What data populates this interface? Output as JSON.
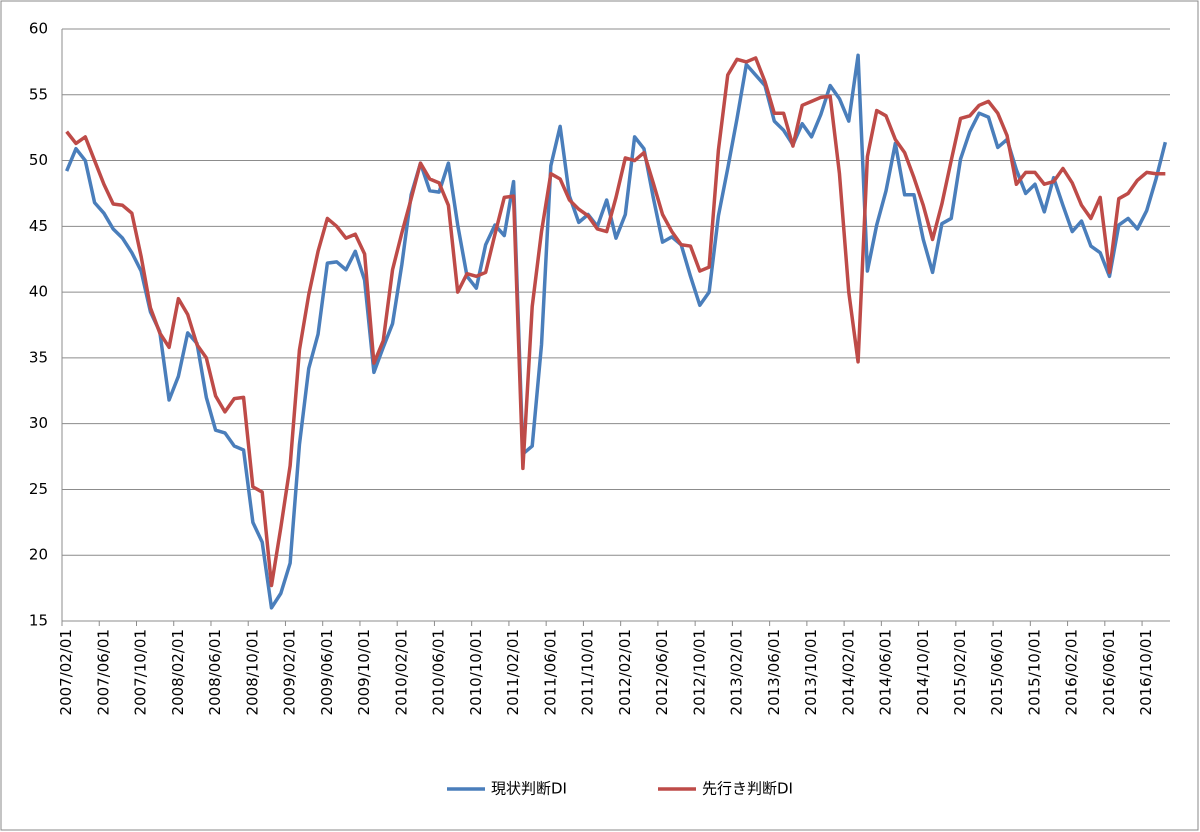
{
  "chart_data": {
    "type": "line",
    "categories": [
      "2007/02/01",
      null,
      null,
      null,
      "2007/06/01",
      null,
      null,
      null,
      "2007/10/01",
      null,
      null,
      null,
      "2008/02/01",
      null,
      null,
      null,
      "2008/06/01",
      null,
      null,
      null,
      "2008/10/01",
      null,
      null,
      null,
      "2009/02/01",
      null,
      null,
      null,
      "2009/06/01",
      null,
      null,
      null,
      "2009/10/01",
      null,
      null,
      null,
      "2010/02/01",
      null,
      null,
      null,
      "2010/06/01",
      null,
      null,
      null,
      "2010/10/01",
      null,
      null,
      null,
      "2011/02/01",
      null,
      null,
      null,
      "2011/06/01",
      null,
      null,
      null,
      "2011/10/01",
      null,
      null,
      null,
      "2012/02/01",
      null,
      null,
      null,
      "2012/06/01",
      null,
      null,
      null,
      "2012/10/01",
      null,
      null,
      null,
      "2013/02/01",
      null,
      null,
      null,
      "2013/06/01",
      null,
      null,
      null,
      "2013/10/01",
      null,
      null,
      null,
      "2014/02/01",
      null,
      null,
      null,
      "2014/06/01",
      null,
      null,
      null,
      "2014/10/01",
      null,
      null,
      null,
      "2015/02/01",
      null,
      null,
      null,
      "2015/06/01",
      null,
      null,
      null,
      "2015/10/01",
      null,
      null,
      null,
      "2016/02/01",
      null,
      null,
      null,
      "2016/06/01",
      null,
      null,
      null,
      "2016/10/01",
      null,
      null
    ],
    "series": [
      {
        "name": "現状判断DI",
        "color": "#4a7ebb",
        "values": [
          49.2,
          50.9,
          50.0,
          46.8,
          46.0,
          44.8,
          44.1,
          43.0,
          41.6,
          38.5,
          37.0,
          31.8,
          33.6,
          36.9,
          36.1,
          32.0,
          29.5,
          29.3,
          28.3,
          28.0,
          22.5,
          21.0,
          16.0,
          17.1,
          19.4,
          28.4,
          34.2,
          36.8,
          42.2,
          42.3,
          41.7,
          43.1,
          40.9,
          33.9,
          35.8,
          37.6,
          42.1,
          47.4,
          49.8,
          47.7,
          47.6,
          49.8,
          45.1,
          41.2,
          40.3,
          43.6,
          45.1,
          44.3,
          48.4,
          27.7,
          28.3,
          36.0,
          49.6,
          52.6,
          47.3,
          45.3,
          45.9,
          45.0,
          47.0,
          44.1,
          45.9,
          51.8,
          50.9,
          47.2,
          43.8,
          44.2,
          43.6,
          41.2,
          39.0,
          40.0,
          45.8,
          49.4,
          53.2,
          57.3,
          56.5,
          55.7,
          53.0,
          52.3,
          51.2,
          52.8,
          51.8,
          53.5,
          55.7,
          54.7,
          53.0,
          58.0,
          41.6,
          45.1,
          47.7,
          51.3,
          47.4,
          47.4,
          44.0,
          41.5,
          45.2,
          45.6,
          50.1,
          52.2,
          53.6,
          53.3,
          51.0,
          51.6,
          49.3,
          47.5,
          48.2,
          46.1,
          48.7,
          46.6,
          44.6,
          45.4,
          43.5,
          43.0,
          41.2,
          45.1,
          45.6,
          44.8,
          46.2,
          48.6,
          51.4
        ]
      },
      {
        "name": "先行き判断DI",
        "color": "#be4b48",
        "values": [
          52.2,
          51.3,
          51.8,
          50.0,
          48.2,
          46.7,
          46.6,
          46.0,
          42.7,
          38.8,
          36.9,
          35.8,
          39.5,
          38.3,
          36.0,
          35.0,
          32.1,
          30.9,
          31.9,
          32.0,
          25.2,
          24.8,
          17.7,
          22.1,
          26.8,
          35.6,
          39.8,
          43.1,
          45.6,
          45.0,
          44.1,
          44.4,
          42.9,
          34.6,
          36.3,
          41.7,
          44.5,
          47.1,
          49.8,
          48.6,
          48.3,
          46.6,
          40.0,
          41.4,
          41.2,
          41.5,
          44.4,
          47.2,
          47.3,
          26.6,
          38.9,
          44.6,
          49.0,
          48.6,
          47.0,
          46.3,
          45.8,
          44.8,
          44.6,
          47.2,
          50.2,
          50.0,
          50.6,
          48.3,
          45.9,
          44.6,
          43.6,
          43.5,
          41.6,
          41.9,
          50.8,
          56.5,
          57.7,
          57.5,
          57.8,
          56.0,
          53.6,
          53.6,
          51.1,
          54.2,
          54.5,
          54.8,
          54.9,
          49.0,
          40.0,
          34.7,
          50.3,
          53.8,
          53.4,
          51.6,
          50.6,
          48.7,
          46.6,
          44.0,
          46.7,
          50.0,
          53.2,
          53.4,
          54.2,
          54.5,
          53.6,
          51.9,
          48.2,
          49.1,
          49.1,
          48.2,
          48.4,
          49.4,
          48.3,
          46.6,
          45.6,
          47.2,
          41.5,
          47.1,
          47.5,
          48.5,
          49.1,
          49.0,
          49.0
        ]
      }
    ],
    "ylim": [
      15,
      60
    ],
    "yticks": [
      15,
      20,
      25,
      30,
      35,
      40,
      45,
      50,
      55,
      60
    ],
    "grid": true,
    "legend": "bottom"
  }
}
